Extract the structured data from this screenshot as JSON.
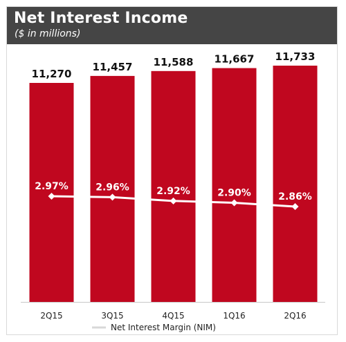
{
  "header": {
    "title": "Net Interest Income",
    "subtitle": "($ in millions)"
  },
  "colors": {
    "bar": "#c0071f",
    "line": "#ffffff",
    "header_bg": "#454545"
  },
  "chart_data": {
    "type": "bar",
    "categories": [
      "2Q15",
      "3Q15",
      "4Q15",
      "1Q16",
      "2Q16"
    ],
    "series": [
      {
        "type": "bar",
        "values": [
          11270,
          11457,
          11588,
          11667,
          11733
        ],
        "value_labels": [
          "11,270",
          "11,457",
          "11,588",
          "11,667",
          "11,733"
        ]
      },
      {
        "name": "Net Interest Margin (NIM)",
        "type": "line",
        "values": [
          2.97,
          2.96,
          2.92,
          2.9,
          2.86
        ],
        "value_labels": [
          "2.97%",
          "2.96%",
          "2.92%",
          "2.90%",
          "2.86%"
        ]
      }
    ],
    "title": "Net Interest Income",
    "subtitle": "($ in millions)",
    "xlabel": "",
    "ylabel": "",
    "legend": {
      "position": "bottom",
      "entries": [
        "Net Interest Margin (NIM)"
      ]
    },
    "grid": false
  }
}
